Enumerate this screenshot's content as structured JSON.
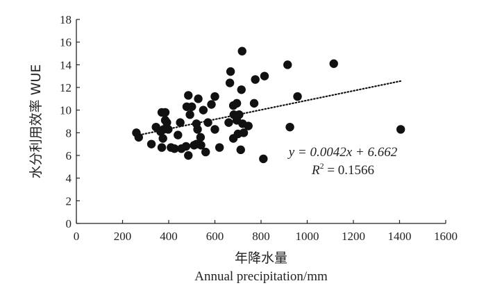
{
  "chart_data": {
    "type": "scatter",
    "title": "",
    "xlabel_cn": "年降水量",
    "xlabel_en": "Annual precipitation/mm",
    "ylabel": "水分利用效率 WUE",
    "xlim": [
      0,
      1600
    ],
    "ylim": [
      0,
      18
    ],
    "xticks": [
      "0",
      "200",
      "400",
      "600",
      "800",
      "1000",
      "1200",
      "1400",
      "1600"
    ],
    "yticks": [
      "0",
      "2",
      "4",
      "6",
      "8",
      "10",
      "12",
      "14",
      "16",
      "18"
    ],
    "grid": false,
    "points": [
      [
        260,
        8.0
      ],
      [
        270,
        7.6
      ],
      [
        325,
        7.0
      ],
      [
        345,
        8.5
      ],
      [
        365,
        8.1
      ],
      [
        370,
        9.8
      ],
      [
        370,
        6.7
      ],
      [
        375,
        7.5
      ],
      [
        378,
        8.3
      ],
      [
        385,
        9.8
      ],
      [
        385,
        9.1
      ],
      [
        392,
        8.9
      ],
      [
        398,
        8.3
      ],
      [
        410,
        6.7
      ],
      [
        425,
        6.6
      ],
      [
        440,
        7.8
      ],
      [
        450,
        8.9
      ],
      [
        455,
        6.6
      ],
      [
        475,
        6.8
      ],
      [
        478,
        10.3
      ],
      [
        485,
        11.3
      ],
      [
        485,
        6.0
      ],
      [
        492,
        9.6
      ],
      [
        500,
        10.3
      ],
      [
        510,
        6.9
      ],
      [
        520,
        7.0
      ],
      [
        520,
        8.8
      ],
      [
        525,
        8.3
      ],
      [
        528,
        11.0
      ],
      [
        538,
        7.6
      ],
      [
        540,
        6.9
      ],
      [
        550,
        10.0
      ],
      [
        560,
        6.3
      ],
      [
        570,
        8.9
      ],
      [
        585,
        10.5
      ],
      [
        600,
        11.2
      ],
      [
        600,
        8.3
      ],
      [
        620,
        6.7
      ],
      [
        660,
        8.9
      ],
      [
        665,
        12.4
      ],
      [
        668,
        13.4
      ],
      [
        680,
        10.4
      ],
      [
        680,
        7.5
      ],
      [
        682,
        9.6
      ],
      [
        695,
        10.6
      ],
      [
        695,
        9.1
      ],
      [
        700,
        7.9
      ],
      [
        705,
        9.6
      ],
      [
        712,
        6.5
      ],
      [
        715,
        11.8
      ],
      [
        718,
        15.2
      ],
      [
        720,
        8.8
      ],
      [
        725,
        8.0
      ],
      [
        745,
        8.6
      ],
      [
        770,
        10.6
      ],
      [
        775,
        12.7
      ],
      [
        810,
        5.7
      ],
      [
        815,
        13.0
      ],
      [
        915,
        14.0
      ],
      [
        925,
        8.5
      ],
      [
        958,
        11.2
      ],
      [
        1115,
        14.1
      ],
      [
        1405,
        8.3
      ]
    ],
    "trendline": {
      "style": "dotted",
      "slope": 0.0042,
      "intercept": 6.662,
      "x_range": [
        260,
        1405
      ]
    },
    "annotation": {
      "equation": "y = 0.0042x + 6.662",
      "r2_label": "R",
      "r2_exp": "2",
      "r2_value": " = 0.1566"
    },
    "colors": {
      "points": "#111111",
      "axis": "#222222",
      "trendline": "#111111"
    }
  }
}
